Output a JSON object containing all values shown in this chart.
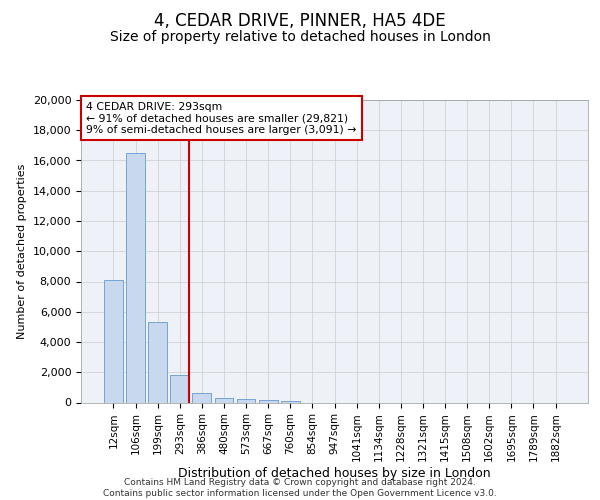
{
  "title": "4, CEDAR DRIVE, PINNER, HA5 4DE",
  "subtitle": "Size of property relative to detached houses in London",
  "xlabel": "Distribution of detached houses by size in London",
  "ylabel": "Number of detached properties",
  "categories": [
    "12sqm",
    "106sqm",
    "199sqm",
    "293sqm",
    "386sqm",
    "480sqm",
    "573sqm",
    "667sqm",
    "760sqm",
    "854sqm",
    "947sqm",
    "1041sqm",
    "1134sqm",
    "1228sqm",
    "1321sqm",
    "1415sqm",
    "1508sqm",
    "1602sqm",
    "1695sqm",
    "1789sqm",
    "1882sqm"
  ],
  "bar_heights": [
    8100,
    16500,
    5300,
    1800,
    650,
    290,
    200,
    150,
    120,
    0,
    0,
    0,
    0,
    0,
    0,
    0,
    0,
    0,
    0,
    0,
    0
  ],
  "bar_color": "#c8d8ee",
  "bar_edgecolor": "#6699cc",
  "vline_color": "#cc0000",
  "annotation_text": "4 CEDAR DRIVE: 293sqm\n← 91% of detached houses are smaller (29,821)\n9% of semi-detached houses are larger (3,091) →",
  "annotation_box_edge": "#cc0000",
  "ylim": [
    0,
    20000
  ],
  "yticks": [
    0,
    2000,
    4000,
    6000,
    8000,
    10000,
    12000,
    14000,
    16000,
    18000,
    20000
  ],
  "grid_color": "#cccccc",
  "footer_line1": "Contains HM Land Registry data © Crown copyright and database right 2024.",
  "footer_line2": "Contains public sector information licensed under the Open Government Licence v3.0.",
  "background_color": "#ffffff",
  "plot_bg_color": "#eef2f8",
  "title_fontsize": 12,
  "subtitle_fontsize": 10,
  "ylabel_fontsize": 8,
  "xlabel_fontsize": 9,
  "tick_fontsize": 7.5,
  "ytick_fontsize": 8
}
